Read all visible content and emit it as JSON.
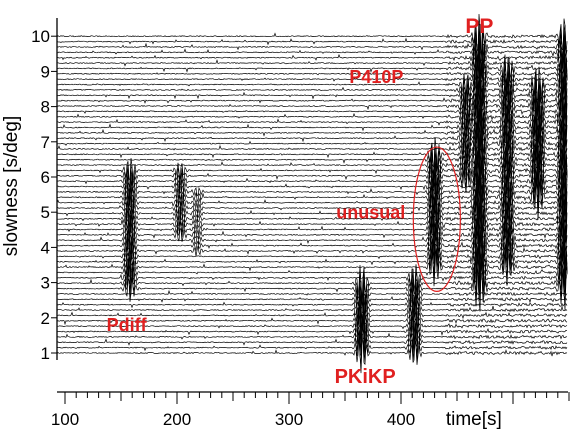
{
  "chart_data": {
    "type": "seismic-record-section",
    "xlabel": "time[s]",
    "ylabel": "slowness [s/deg]",
    "xlim": [
      90,
      570
    ],
    "ylim": [
      0.7,
      10.3
    ],
    "x_ticks": [
      "100",
      "200",
      "300",
      "400"
    ],
    "y_ticks": [
      "1",
      "2",
      "3",
      "4",
      "5",
      "6",
      "7",
      "8",
      "9",
      "10"
    ],
    "trace_count": 60,
    "trace_color": "#000000",
    "annotation_color": "#e02020",
    "annotations": [
      {
        "text": "Pdiff",
        "time": 155,
        "slowness": 1.8
      },
      {
        "text": "PKiKP",
        "time": 368,
        "slowness": 0.35
      },
      {
        "text": "P410P",
        "time": 378,
        "slowness": 8.85
      },
      {
        "text": "unusual",
        "time": 373,
        "slowness": 5.0
      },
      {
        "text": "PP",
        "time": 470,
        "slowness": 10.3
      }
    ],
    "arrivals": [
      {
        "time": 158,
        "slowness_range": [
          3.0,
          6.0
        ],
        "strength": 0.55
      },
      {
        "time": 203,
        "slowness_range": [
          4.5,
          6.0
        ],
        "strength": 0.35
      },
      {
        "time": 218,
        "slowness_range": [
          4.0,
          5.5
        ],
        "strength": 0.2
      },
      {
        "time": 365,
        "slowness_range": [
          0.8,
          2.8
        ],
        "strength": 0.8
      },
      {
        "time": 412,
        "slowness_range": [
          0.8,
          3.0
        ],
        "strength": 0.6
      },
      {
        "time": 430,
        "slowness_range": [
          3.5,
          6.5
        ],
        "strength": 0.75
      },
      {
        "time": 458,
        "slowness_range": [
          6.0,
          8.5
        ],
        "strength": 0.5
      },
      {
        "time": 470,
        "slowness_range": [
          3.0,
          10.0
        ],
        "strength": 1.0
      },
      {
        "time": 495,
        "slowness_range": [
          3.5,
          9.0
        ],
        "strength": 0.7
      },
      {
        "time": 522,
        "slowness_range": [
          5.5,
          8.5
        ],
        "strength": 0.85
      },
      {
        "time": 546,
        "slowness_range": [
          3.0,
          10.0
        ],
        "strength": 0.9
      },
      {
        "time": 563,
        "slowness_range": [
          3.0,
          4.5
        ],
        "strength": 0.5
      }
    ],
    "highlight_region": {
      "label": "unusual",
      "time": 432,
      "slowness": 4.8,
      "time_halfwidth": 21,
      "slowness_halfwidth": 2.05
    }
  }
}
